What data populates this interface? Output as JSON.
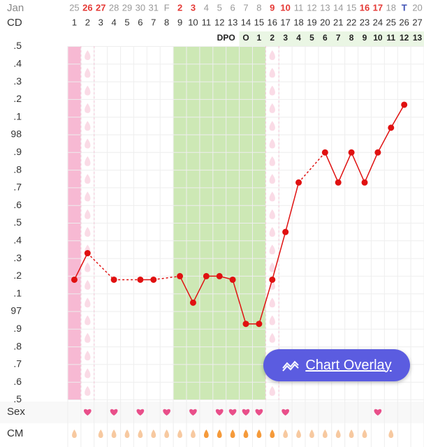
{
  "chart_data": {
    "type": "line",
    "month_label": "Jan",
    "cd_label": "CD",
    "dpo_label": "DPO",
    "sex_label": "Sex",
    "cm_label": "CM",
    "categories": [
      "25",
      "26",
      "27",
      "28",
      "29",
      "30",
      "31",
      "F",
      "2",
      "3",
      "4",
      "5",
      "6",
      "7",
      "8",
      "9",
      "10",
      "11",
      "12",
      "13",
      "14",
      "15",
      "16",
      "17",
      "18",
      "T",
      "20"
    ],
    "date_colors": [
      "#999",
      "#e53935",
      "#e53935",
      "#999",
      "#999",
      "#999",
      "#999",
      "#999",
      "#e53935",
      "#e53935",
      "#999",
      "#999",
      "#999",
      "#999",
      "#999",
      "#e53935",
      "#e53935",
      "#999",
      "#999",
      "#999",
      "#999",
      "#999",
      "#e53935",
      "#e53935",
      "#999",
      "#3f51b5",
      "#999"
    ],
    "cd": [
      1,
      2,
      3,
      4,
      5,
      6,
      7,
      8,
      9,
      10,
      11,
      12,
      13,
      14,
      15,
      16,
      17,
      18,
      19,
      20,
      21,
      22,
      23,
      24,
      25,
      26,
      27
    ],
    "dpo": [
      null,
      null,
      null,
      null,
      null,
      null,
      null,
      null,
      null,
      null,
      null,
      null,
      null,
      "O",
      "1",
      "2",
      "3",
      "4",
      "5",
      "6",
      "7",
      "8",
      "9",
      "10",
      "11",
      "12",
      "13"
    ],
    "series": [
      {
        "color": "#e01010",
        "values": [
          97.18,
          97.33,
          null,
          97.18,
          null,
          97.18,
          97.18,
          null,
          97.2,
          97.05,
          97.2,
          97.2,
          97.18,
          96.93,
          96.93,
          97.18,
          97.45,
          97.73,
          null,
          97.9,
          97.73,
          97.9,
          97.73,
          97.9,
          98.04,
          98.17,
          null
        ]
      }
    ],
    "ylim": [
      96.5,
      98.5
    ],
    "yticks": [
      {
        "value": 98.5,
        "label": ".5"
      },
      {
        "value": 98.4,
        "label": ".4"
      },
      {
        "value": 98.3,
        "label": ".3"
      },
      {
        "value": 98.2,
        "label": ".2"
      },
      {
        "value": 98.1,
        "label": ".1"
      },
      98,
      {
        "value": 97.9,
        "label": ".9"
      },
      {
        "value": 97.8,
        "label": ".8"
      },
      {
        "value": 97.7,
        "label": ".7"
      },
      {
        "value": 97.6,
        "label": ".6"
      },
      {
        "value": 97.5,
        "label": ".5"
      },
      {
        "value": 97.4,
        "label": ".4"
      },
      {
        "value": 97.3,
        "label": ".3"
      },
      {
        "value": 97.2,
        "label": ".2"
      },
      {
        "value": 97.1,
        "label": ".1"
      },
      97,
      {
        "value": 96.9,
        "label": ".9"
      },
      {
        "value": 96.8,
        "label": ".8"
      },
      {
        "value": 96.7,
        "label": ".7"
      },
      {
        "value": 96.6,
        "label": ".6"
      },
      {
        "value": 96.5,
        "label": ".5"
      }
    ],
    "period_days": [
      1
    ],
    "spotting_days": [
      2,
      16
    ],
    "fertile_days": [
      9,
      10,
      11,
      12,
      13,
      14,
      15
    ],
    "sex_days": [
      2,
      4,
      6,
      8,
      10,
      12,
      13,
      14,
      15,
      17,
      24
    ],
    "cm_colors": [
      "#f7c9a0",
      null,
      "#f7c9a0",
      "#f7c9a0",
      "#f7c9a0",
      "#f7c9a0",
      "#f7c9a0",
      "#f7c9a0",
      "#f7c9a0",
      "#f7c9a0",
      "#f59a3a",
      "#f59a3a",
      "#f59a3a",
      "#f59a3a",
      "#f59a3a",
      "#f59a3a",
      "#f7c9a0",
      "#f7c9a0",
      "#f7c9a0",
      "#f7c9a0",
      "#f7c9a0",
      "#f7c9a0",
      "#f7c9a0",
      null,
      "#f7c9a0",
      null,
      null
    ],
    "overlay_button": "Chart Overlay"
  }
}
